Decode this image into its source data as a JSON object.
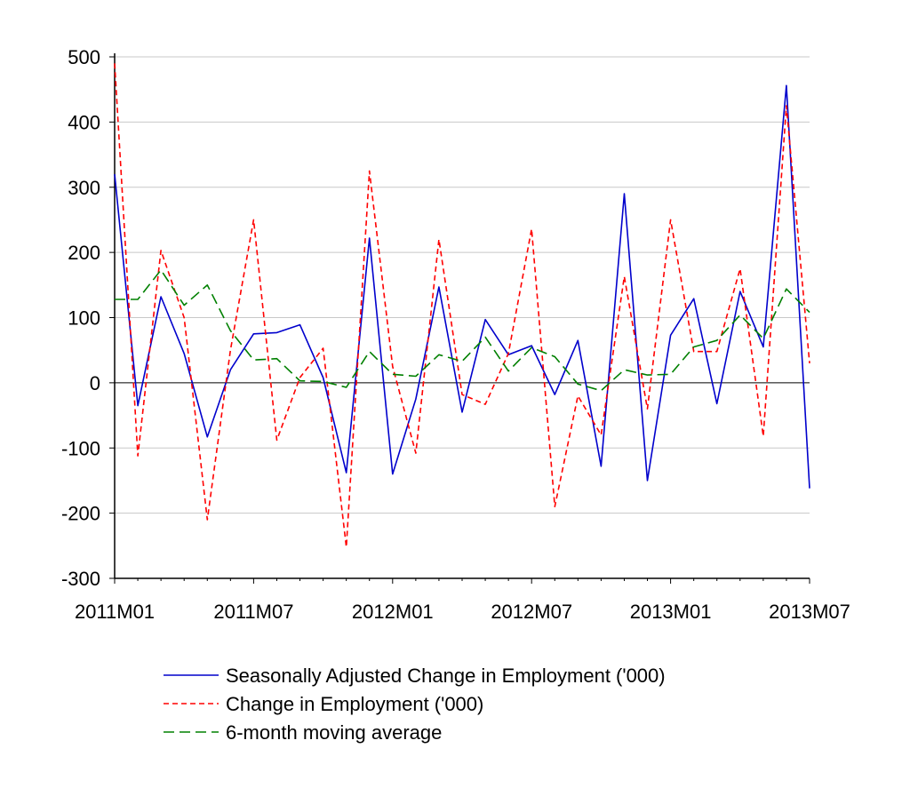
{
  "chart_data": {
    "type": "line",
    "title": "",
    "xlabel": "",
    "ylabel": "",
    "x": [
      "2011M01",
      "2011M02",
      "2011M03",
      "2011M04",
      "2011M05",
      "2011M06",
      "2011M07",
      "2011M08",
      "2011M09",
      "2011M10",
      "2011M11",
      "2011M12",
      "2012M01",
      "2012M02",
      "2012M03",
      "2012M04",
      "2012M05",
      "2012M06",
      "2012M07",
      "2012M08",
      "2012M09",
      "2012M10",
      "2012M11",
      "2012M12",
      "2013M01",
      "2013M02",
      "2013M03",
      "2013M04",
      "2013M05",
      "2013M06",
      "2013M07"
    ],
    "x_tick_labels": [
      "2011M01",
      "2011M07",
      "2012M01",
      "2012M07",
      "2013M01",
      "2013M07"
    ],
    "x_tick_index": [
      0,
      6,
      12,
      18,
      24,
      30
    ],
    "ylim": [
      -300,
      500
    ],
    "y_ticks": [
      -300,
      -200,
      -100,
      0,
      100,
      200,
      300,
      400,
      500
    ],
    "grid": true,
    "legend_position": "bottom",
    "series": [
      {
        "name": "Seasonally Adjusted Change in Employment ('000)",
        "color": "#0000cc",
        "dash": "solid",
        "values": [
          320,
          -35,
          132,
          45,
          -83,
          20,
          75,
          77,
          89,
          8,
          -138,
          222,
          -140,
          -25,
          147,
          -45,
          97,
          43,
          57,
          -18,
          65,
          -128,
          290,
          -150,
          73,
          129,
          -32,
          140,
          55,
          456,
          -162
        ]
      },
      {
        "name": "Change in Employment ('000)",
        "color": "#ff0000",
        "dash": "short",
        "values": [
          490,
          -112,
          203,
          100,
          -210,
          50,
          250,
          -88,
          8,
          53,
          -252,
          325,
          25,
          -108,
          220,
          -18,
          -33,
          45,
          236,
          -190,
          -20,
          -80,
          163,
          -40,
          250,
          48,
          48,
          175,
          -82,
          425,
          30
        ]
      },
      {
        "name": "6-month moving average",
        "color": "#008000",
        "dash": "long",
        "values": [
          128,
          128,
          173,
          119,
          150,
          80,
          35,
          37,
          3,
          2,
          -7,
          48,
          13,
          10,
          43,
          33,
          70,
          18,
          54,
          40,
          -2,
          -12,
          20,
          12,
          13,
          55,
          65,
          104,
          68,
          144,
          108
        ]
      }
    ]
  }
}
